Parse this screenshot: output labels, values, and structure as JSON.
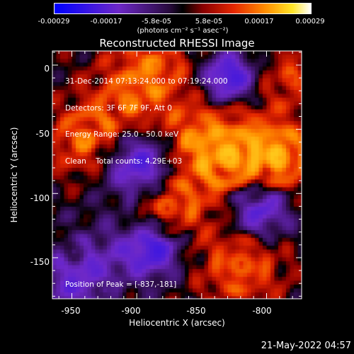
{
  "chart_data": {
    "type": "heatmap",
    "title": "Reconstructed RHESSI Image",
    "xlabel": "Heliocentric X (arcsec)",
    "ylabel": "Heliocentric Y (arcsec)",
    "xlim": [
      -965,
      -773
    ],
    "ylim": [
      -182,
      11
    ],
    "x_ticks": [
      "-950",
      "-900",
      "-850",
      "-800"
    ],
    "x_tick_values": [
      -950,
      -900,
      -850,
      -800
    ],
    "y_ticks": [
      "0",
      "-50",
      "-100",
      "-150"
    ],
    "y_tick_values": [
      0,
      -50,
      -100,
      -150
    ],
    "colorbar": {
      "ticks": [
        "-0.00029",
        "-0.00017",
        "-5.8e-05",
        "5.8e-05",
        "0.00017",
        "0.00029"
      ],
      "tick_values": [
        -0.00029,
        -0.00017,
        -5.8e-05,
        5.8e-05,
        0.00017,
        0.00029
      ],
      "range": [
        -0.00029,
        0.00029
      ],
      "unit": "(photons cm⁻² s⁻¹ asec⁻²)"
    },
    "annotations": [
      "31-Dec-2014 07:13:24.000 to 07:19:24.000",
      "Detectors: 3F 6F 7F 9F, Att 0",
      "Energy Range: 25.0 - 50.0 keV",
      "Clean    Total counts: 4.29E+03"
    ],
    "peak_label": "Position of Peak = [-837,-181]",
    "peak": {
      "x": -837,
      "y": -181
    }
  },
  "timestamp": "21-May-2022 04:57"
}
